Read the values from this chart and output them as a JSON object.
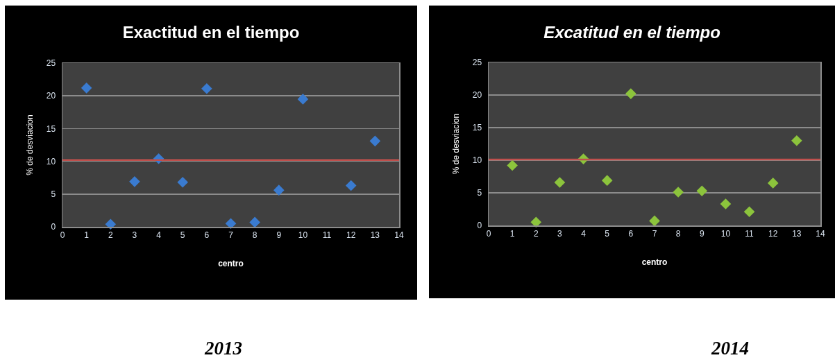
{
  "chart_data": [
    {
      "type": "scatter",
      "title": "Exactitud en el tiempo",
      "xlabel": "centro",
      "ylabel": "% de desviacion",
      "x": [
        1,
        2,
        3,
        4,
        5,
        6,
        7,
        8,
        9,
        10,
        11,
        12,
        13
      ],
      "series": [
        {
          "color": "#3a7bd0",
          "values": [
            21.2,
            0.4,
            6.9,
            10.4,
            6.8,
            21.1,
            0.5,
            0.7,
            5.6,
            19.5,
            null,
            6.3,
            13.1
          ]
        }
      ],
      "xlim": [
        0,
        14
      ],
      "xticks": [
        0,
        1,
        2,
        3,
        4,
        5,
        6,
        7,
        8,
        9,
        10,
        11,
        12,
        13,
        14
      ],
      "ylim": [
        0,
        25
      ],
      "yticks": [
        0,
        5,
        10,
        15,
        20,
        25
      ],
      "grid": "y",
      "marker": "diamond",
      "ref_lines": [
        {
          "axis": "y",
          "value": 10.2,
          "color": "#c0504d"
        }
      ],
      "annotations": [
        "2013"
      ]
    },
    {
      "type": "scatter",
      "title": "Excatitud en el tiempo",
      "xlabel": "centro",
      "ylabel": "% de desviacion",
      "x": [
        1,
        2,
        3,
        4,
        5,
        6,
        7,
        8,
        9,
        10,
        11,
        12,
        13
      ],
      "series": [
        {
          "color": "#8cc43c",
          "values": [
            9.2,
            0.5,
            6.6,
            10.2,
            6.9,
            20.2,
            0.7,
            5.1,
            5.3,
            3.3,
            2.1,
            6.5,
            13.0
          ]
        }
      ],
      "xlim": [
        0,
        14
      ],
      "xticks": [
        0,
        1,
        2,
        3,
        4,
        5,
        6,
        7,
        8,
        9,
        10,
        11,
        12,
        13,
        14
      ],
      "ylim": [
        0,
        25
      ],
      "yticks": [
        0,
        5,
        10,
        15,
        20,
        25
      ],
      "grid": "y",
      "marker": "diamond",
      "ref_lines": [
        {
          "axis": "y",
          "value": 10.1,
          "color": "#c0504d"
        }
      ],
      "annotations": [
        "2014"
      ]
    }
  ]
}
